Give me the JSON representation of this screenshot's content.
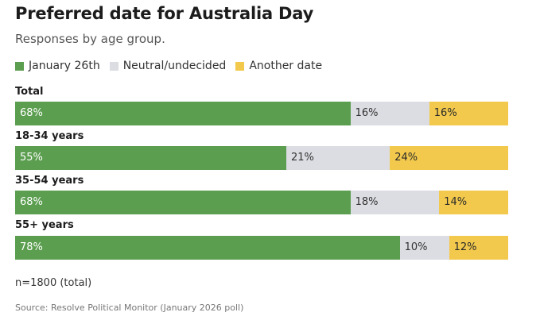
{
  "title": "Preferred date for Australia Day",
  "subtitle": "Responses by age group.",
  "note": "n=1800 (total)",
  "source": "Source: Resolve Political Monitor (January 2026 poll)",
  "colors": {
    "january_26th": "#5b9e4f",
    "neutral": "#dcdde2",
    "another_date": "#f2c94c"
  },
  "chart_data": {
    "type": "bar",
    "orientation": "horizontal",
    "stacked": true,
    "unit": "%",
    "legend_position": "top-left",
    "categories": [
      "Total",
      "18-34 years",
      "35-54 years",
      "55+ years"
    ],
    "series": [
      {
        "name": "January 26th",
        "values": [
          68,
          55,
          68,
          78
        ],
        "labels": [
          "68%",
          "55%",
          "68%",
          "78%"
        ]
      },
      {
        "name": "Neutral/undecided",
        "values": [
          16,
          21,
          18,
          10
        ],
        "labels": [
          "16%",
          "21%",
          "18%",
          "10%"
        ]
      },
      {
        "name": "Another date",
        "values": [
          16,
          24,
          14,
          12
        ],
        "labels": [
          "16%",
          "24%",
          "14%",
          "12%"
        ]
      }
    ]
  }
}
